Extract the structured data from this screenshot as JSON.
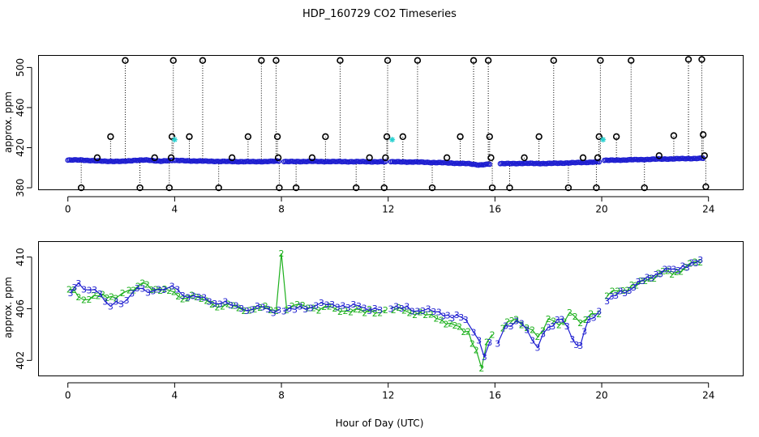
{
  "title": "HDP_160729  CO2 Timeseries",
  "colors": {
    "black": "#000000",
    "blue": "#1f1fd0",
    "green": "#1db01d",
    "cyan": "#28d0d0"
  },
  "chart_data": [
    {
      "type": "scatter",
      "panel": "top",
      "title": "HDP_160729  CO2 Timeseries",
      "xlabel": "",
      "ylabel": "approx. ppm",
      "xlim": [
        -1.1,
        25.3
      ],
      "ylim": [
        378,
        512
      ],
      "xticks": [
        "0",
        "4",
        "8",
        "12",
        "16",
        "20",
        "24"
      ],
      "yticks": [
        "380",
        "420",
        "460",
        "500"
      ],
      "series": [
        {
          "name": "outliers",
          "color": "black",
          "marker": "circle",
          "points": [
            [
              0.5,
              380
            ],
            [
              1.1,
              410
            ],
            [
              1.6,
              431
            ],
            [
              2.15,
              507
            ],
            [
              2.7,
              380
            ],
            [
              3.25,
              410
            ],
            [
              3.8,
              380
            ],
            [
              3.87,
              410
            ],
            [
              3.9,
              431
            ],
            [
              3.95,
              507
            ],
            [
              4.55,
              431
            ],
            [
              5.05,
              507
            ],
            [
              5.65,
              380
            ],
            [
              6.15,
              410
            ],
            [
              6.75,
              431
            ],
            [
              7.25,
              507
            ],
            [
              7.8,
              507
            ],
            [
              7.85,
              431
            ],
            [
              7.88,
              410
            ],
            [
              7.92,
              380
            ],
            [
              8.55,
              380
            ],
            [
              9.15,
              410
            ],
            [
              9.65,
              431
            ],
            [
              10.2,
              507
            ],
            [
              10.8,
              380
            ],
            [
              11.3,
              410
            ],
            [
              11.85,
              380
            ],
            [
              11.9,
              410
            ],
            [
              11.95,
              431
            ],
            [
              11.98,
              507
            ],
            [
              12.55,
              431
            ],
            [
              13.1,
              507
            ],
            [
              13.65,
              380
            ],
            [
              14.2,
              410
            ],
            [
              14.7,
              431
            ],
            [
              15.2,
              507
            ],
            [
              15.75,
              507
            ],
            [
              15.8,
              431
            ],
            [
              15.85,
              410
            ],
            [
              15.9,
              380
            ],
            [
              16.55,
              380
            ],
            [
              17.1,
              410
            ],
            [
              17.65,
              431
            ],
            [
              18.2,
              507
            ],
            [
              18.75,
              380
            ],
            [
              19.3,
              410
            ],
            [
              19.8,
              380
            ],
            [
              19.85,
              410
            ],
            [
              19.9,
              431
            ],
            [
              19.95,
              507
            ],
            [
              20.55,
              431
            ],
            [
              21.1,
              507
            ],
            [
              21.6,
              380
            ],
            [
              22.15,
              412
            ],
            [
              22.7,
              432
            ],
            [
              23.25,
              508
            ],
            [
              23.75,
              508
            ],
            [
              23.8,
              433
            ],
            [
              23.85,
              412
            ],
            [
              23.9,
              381
            ]
          ]
        },
        {
          "name": "cyan",
          "color": "cyan",
          "marker": "asterisk",
          "points": [
            [
              4.0,
              428
            ],
            [
              12.15,
              428
            ],
            [
              20.05,
              428
            ]
          ]
        },
        {
          "name": "co2 trace",
          "color": "blue",
          "marker": "circle",
          "segments": [
            [
              [
                0.0,
                407.5
              ],
              [
                0.5,
                407.8
              ],
              [
                1.0,
                406.8
              ],
              [
                1.5,
                406.5
              ],
              [
                2.0,
                406.2
              ],
              [
                2.5,
                407.4
              ],
              [
                3.0,
                407.6
              ],
              [
                3.5,
                406.5
              ],
              [
                3.9,
                407.2
              ]
            ],
            [
              [
                4.0,
                407.2
              ],
              [
                5.0,
                406.6
              ],
              [
                6.0,
                406.2
              ],
              [
                7.0,
                406.0
              ],
              [
                7.9,
                406.5
              ]
            ],
            [
              [
                8.1,
                406.0
              ],
              [
                9.0,
                406.3
              ],
              [
                10.0,
                406.1
              ],
              [
                11.0,
                406.0
              ],
              [
                11.9,
                405.9
              ]
            ],
            [
              [
                12.1,
                405.9
              ],
              [
                13.0,
                405.7
              ],
              [
                14.0,
                405.0
              ],
              [
                15.0,
                404.0
              ],
              [
                15.4,
                402.8
              ],
              [
                15.8,
                403.5
              ]
            ],
            [
              [
                16.2,
                404.0
              ],
              [
                17.0,
                404.3
              ],
              [
                18.0,
                404.2
              ],
              [
                19.0,
                405.0
              ],
              [
                19.9,
                405.8
              ]
            ],
            [
              [
                20.1,
                407.3
              ],
              [
                21.0,
                407.8
              ],
              [
                22.0,
                408.5
              ],
              [
                23.0,
                409.0
              ],
              [
                23.8,
                409.4
              ]
            ]
          ]
        }
      ]
    },
    {
      "type": "line",
      "panel": "bottom",
      "xlabel": "Hour of Day (UTC)",
      "ylabel": "approx. ppm",
      "xlim": [
        -1.1,
        25.3
      ],
      "ylim": [
        400.8,
        411.2
      ],
      "xticks": [
        "0",
        "4",
        "8",
        "12",
        "16",
        "20",
        "24"
      ],
      "yticks": [
        "402",
        "406",
        "410"
      ],
      "series": [
        {
          "name": "2",
          "color": "green",
          "label": "2",
          "segments": [
            [
              [
                0.05,
                407.5
              ],
              [
                0.4,
                407.0
              ],
              [
                0.8,
                406.8
              ],
              [
                1.3,
                407.3
              ],
              [
                1.8,
                406.8
              ],
              [
                2.3,
                407.5
              ],
              [
                2.8,
                407.8
              ],
              [
                3.3,
                407.5
              ],
              [
                3.8,
                407.2
              ],
              [
                4.3,
                406.9
              ],
              [
                5.0,
                406.7
              ],
              [
                5.6,
                406.4
              ],
              [
                6.2,
                406.2
              ],
              [
                6.8,
                406.1
              ],
              [
                7.4,
                406.0
              ],
              [
                7.8,
                405.9
              ],
              [
                8.0,
                410.0
              ],
              [
                8.2,
                406.0
              ],
              [
                8.8,
                406.1
              ],
              [
                9.4,
                406.1
              ],
              [
                10.0,
                406.0
              ],
              [
                10.6,
                406.0
              ],
              [
                11.3,
                405.9
              ],
              [
                11.9,
                405.9
              ]
            ],
            [
              [
                12.2,
                405.9
              ],
              [
                12.8,
                405.8
              ],
              [
                13.4,
                405.6
              ],
              [
                14.0,
                405.3
              ],
              [
                14.5,
                404.7
              ],
              [
                15.0,
                404.3
              ],
              [
                15.3,
                402.6
              ],
              [
                15.5,
                401.4
              ],
              [
                15.7,
                403.2
              ],
              [
                15.9,
                404.0
              ]
            ],
            [
              [
                16.3,
                404.5
              ],
              [
                16.8,
                405.3
              ],
              [
                17.2,
                404.6
              ],
              [
                17.6,
                404.0
              ],
              [
                18.0,
                405.2
              ],
              [
                18.4,
                404.8
              ],
              [
                18.8,
                405.5
              ],
              [
                19.2,
                404.9
              ],
              [
                19.6,
                405.4
              ],
              [
                19.9,
                405.6
              ]
            ],
            [
              [
                20.2,
                407.0
              ],
              [
                20.8,
                407.5
              ],
              [
                21.3,
                407.9
              ],
              [
                21.8,
                408.5
              ],
              [
                22.3,
                408.9
              ],
              [
                22.8,
                408.9
              ],
              [
                23.3,
                409.3
              ],
              [
                23.7,
                409.6
              ]
            ]
          ]
        },
        {
          "name": "3",
          "color": "blue",
          "label": "3",
          "segments": [
            [
              [
                0.1,
                407.3
              ],
              [
                0.4,
                407.8
              ],
              [
                0.8,
                407.4
              ],
              [
                1.2,
                407.0
              ],
              [
                1.6,
                406.2
              ],
              [
                2.0,
                406.4
              ],
              [
                2.4,
                407.3
              ],
              [
                2.8,
                407.7
              ],
              [
                3.2,
                407.4
              ],
              [
                3.6,
                407.5
              ],
              [
                3.9,
                407.6
              ],
              [
                4.3,
                407.0
              ],
              [
                4.9,
                406.7
              ],
              [
                5.5,
                406.5
              ],
              [
                6.1,
                406.2
              ],
              [
                6.7,
                406.1
              ],
              [
                7.3,
                406.1
              ],
              [
                7.9,
                405.9
              ]
            ],
            [
              [
                8.1,
                405.9
              ],
              [
                8.7,
                406.0
              ],
              [
                9.3,
                406.2
              ],
              [
                9.9,
                406.2
              ],
              [
                10.5,
                406.1
              ],
              [
                11.1,
                406.1
              ],
              [
                11.7,
                405.9
              ]
            ],
            [
              [
                12.1,
                406.1
              ],
              [
                12.7,
                406.0
              ],
              [
                13.3,
                405.8
              ],
              [
                13.9,
                405.6
              ],
              [
                14.4,
                405.3
              ],
              [
                14.9,
                405.2
              ],
              [
                15.2,
                404.3
              ],
              [
                15.4,
                403.7
              ],
              [
                15.6,
                402.3
              ],
              [
                15.8,
                403.4
              ]
            ],
            [
              [
                16.1,
                403.4
              ],
              [
                16.4,
                404.5
              ],
              [
                16.8,
                405.0
              ],
              [
                17.2,
                404.2
              ],
              [
                17.6,
                403.0
              ],
              [
                18.0,
                404.6
              ],
              [
                18.5,
                405.3
              ],
              [
                18.9,
                403.8
              ],
              [
                19.2,
                403.2
              ],
              [
                19.5,
                405.2
              ],
              [
                19.9,
                405.8
              ]
            ],
            [
              [
                20.2,
                406.7
              ],
              [
                20.7,
                407.2
              ],
              [
                21.2,
                407.6
              ],
              [
                21.7,
                408.3
              ],
              [
                22.2,
                408.7
              ],
              [
                22.7,
                409.1
              ],
              [
                23.2,
                409.3
              ],
              [
                23.7,
                409.8
              ]
            ]
          ]
        }
      ]
    }
  ]
}
